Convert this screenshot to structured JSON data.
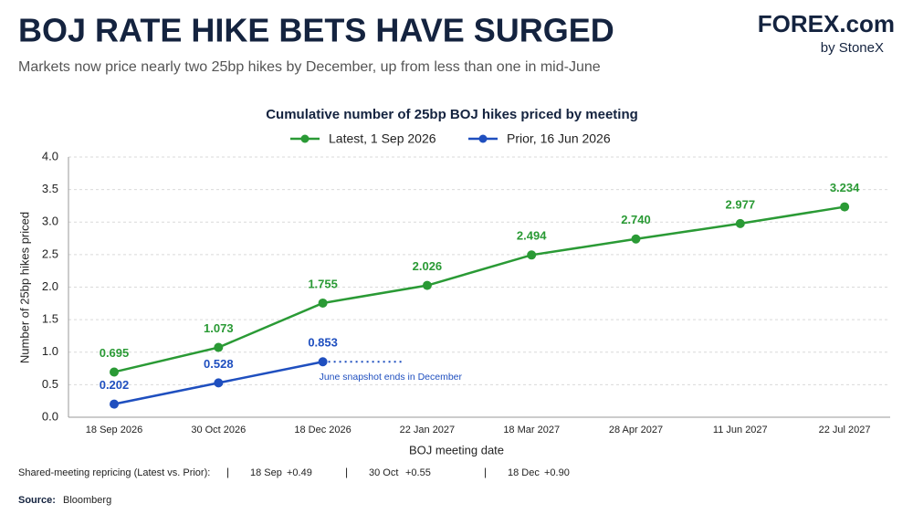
{
  "chart_data": {
    "type": "line",
    "title": "BOJ RATE HIKE BETS HAVE SURGED",
    "subtitle": "Markets now price nearly two 25bp hikes by December, up from less than one in mid-June",
    "brand": {
      "name": "FOREX.com",
      "by": "by StoneX"
    },
    "chart_title": "Cumulative number of 25bp BOJ hikes priced by meeting",
    "x_label": "BOJ meeting date",
    "y_label": "Number of 25bp hikes priced",
    "categories": [
      "18 Sep 2026",
      "30 Oct 2026",
      "18 Dec 2026",
      "22 Jan 2027",
      "18 Mar 2027",
      "28 Apr 2027",
      "11 Jun 2027",
      "22 Jul 2027"
    ],
    "series": [
      {
        "name": "Latest, 1 Sep 2026",
        "color": "#2a9a35",
        "values": [
          0.695,
          1.073,
          1.755,
          2.026,
          2.494,
          2.74,
          2.977,
          3.234
        ],
        "value_labels": [
          "0.695",
          "1.073",
          "1.755",
          "2.026",
          "2.494",
          "2.740",
          "2.977",
          "3.234"
        ]
      },
      {
        "name": "Prior, 16 Jun 2026",
        "color": "#1f4fbf",
        "values": [
          0.202,
          0.528,
          0.853,
          null,
          null,
          null,
          null,
          null
        ],
        "value_labels": [
          "0.202",
          "0.528",
          "0.853",
          null,
          null,
          null,
          null,
          null
        ]
      }
    ],
    "annotation": "June snapshot ends in December",
    "ylim": [
      0,
      4
    ],
    "yticks": [
      {
        "value": 0,
        "label": "0.0"
      },
      0.5,
      {
        "value": 1,
        "label": "1.0"
      },
      1.5,
      {
        "value": 2,
        "label": "2.0"
      },
      2.5,
      {
        "value": 3,
        "label": "3.0"
      },
      3.5,
      {
        "value": 4,
        "label": "4.0"
      }
    ],
    "grid": true,
    "repricing_label": "Shared-meeting repricing (Latest vs. Prior):",
    "repricing": [
      {
        "meeting": "18 Sep",
        "change": "+0.49"
      },
      {
        "meeting": "30 Oct",
        "change": "+0.55"
      },
      {
        "meeting": "18 Dec",
        "change": "+0.90"
      }
    ],
    "source_label": "Source:",
    "source": "Bloomberg"
  }
}
